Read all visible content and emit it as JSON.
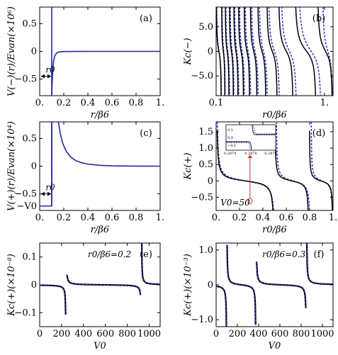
{
  "chart_data": [
    {
      "id": "a",
      "type": "line",
      "panel_label": "(a)",
      "xlabel": "r/β6",
      "ylabel": "V(−)(r)/Evan(×10⁶)",
      "xlim": [
        0,
        1
      ],
      "ylim": [
        -0.8,
        0.8
      ],
      "x_ticks": [
        0,
        0.2,
        0.4,
        0.6,
        0.8,
        1
      ],
      "x_tick_labels": [
        "0.",
        "0.2",
        "0.4",
        "0.6",
        "0.8",
        "1."
      ],
      "y_ticks": [
        -0.5,
        0,
        0.5
      ],
      "y_tick_labels": [
        "−0.5",
        "0",
        "0.5"
      ],
      "annotation": "r0",
      "r0": 0.1,
      "series": [
        {
          "color": "#1f2a9e",
          "style": "solid",
          "x": [
            0.1,
            0.103,
            0.108,
            0.115,
            0.125,
            0.14,
            0.16,
            0.2,
            0.3,
            0.5,
            0.8,
            1.0
          ],
          "y": [
            -0.8,
            -0.6,
            -0.35,
            -0.18,
            -0.08,
            -0.03,
            -0.012,
            -0.003,
            -0.0004,
            0,
            0,
            0
          ]
        }
      ]
    },
    {
      "id": "b",
      "type": "line",
      "panel_label": "(b)",
      "xlabel": "r0/β6",
      "ylabel": "Kc(−)",
      "xscale": "log",
      "xlim": [
        0.1,
        1.2
      ],
      "ylim": [
        -9,
        9
      ],
      "x_ticks": [
        0.1,
        1
      ],
      "x_tick_labels": [
        "0.1",
        "1."
      ],
      "y_ticks": [
        -5,
        0,
        5
      ],
      "y_tick_labels": [
        "−5.0",
        "0",
        "5.0"
      ],
      "solid_poles": [
        0.112,
        0.121,
        0.132,
        0.145,
        0.16,
        0.18,
        0.205,
        0.24,
        0.29,
        0.37,
        0.52,
        0.85
      ],
      "dashed_poles": [
        0.113,
        0.122,
        0.134,
        0.147,
        0.163,
        0.184,
        0.21,
        0.247,
        0.3,
        0.39,
        0.56,
        0.95
      ]
    },
    {
      "id": "c",
      "type": "line",
      "panel_label": "(c)",
      "xlabel": "r/β6",
      "ylabel": "V(+)(r)/Evan(×10⁴)",
      "xlim": [
        0,
        1
      ],
      "ylim": [
        -0.8,
        0.8
      ],
      "x_ticks": [
        0,
        0.2,
        0.4,
        0.6,
        0.8,
        1
      ],
      "x_tick_labels": [
        "0.",
        "0.2",
        "0.4",
        "0.6",
        "0.8",
        "1."
      ],
      "y_ticks": [
        -0.5,
        0,
        0.5
      ],
      "y_tick_labels": [
        "−0.5",
        "0",
        "0.5"
      ],
      "extra_y_label": "−V0",
      "V0_level": -0.72,
      "annotation": "r0",
      "r0": 0.1,
      "series": [
        {
          "color": "#1f2a9e",
          "style": "solid",
          "x": [
            0,
            0.1,
            0.1,
            0.155,
            0.17,
            0.19,
            0.22,
            0.26,
            0.3,
            0.35,
            0.4,
            0.5,
            0.6,
            0.8,
            1.0
          ],
          "y": [
            -0.72,
            -0.72,
            0.8,
            0.8,
            0.6,
            0.42,
            0.27,
            0.16,
            0.1,
            0.06,
            0.037,
            0.015,
            0.006,
            0.001,
            0
          ]
        }
      ]
    },
    {
      "id": "d",
      "type": "line",
      "panel_label": "(d)",
      "xlabel": "r0/β6",
      "ylabel": "Kc(+)",
      "xlim": [
        0,
        1
      ],
      "ylim": [
        -0.9,
        1.8
      ],
      "x_ticks": [
        0,
        0.2,
        0.4,
        0.6,
        0.8,
        1
      ],
      "x_tick_labels": [
        "0.",
        "0.2",
        "0.4",
        "0.6",
        "0.8",
        "1."
      ],
      "y_ticks": [
        -0.5,
        0,
        0.5,
        1,
        1.5
      ],
      "y_tick_labels": [
        "−0.5",
        "0",
        "0.5",
        "1.0",
        "1.5"
      ],
      "annotation": "V0=50",
      "inset": {
        "x_tick_labels": [
          "0.2874",
          "0.2876",
          "0.2878"
        ],
        "y_tick_labels": [
          "0.1",
          "0.0",
          "−0.1"
        ]
      },
      "solid_poles": [
        0.5,
        0.795
      ],
      "dashed_poles": [
        0.51,
        0.81
      ]
    },
    {
      "id": "e",
      "type": "line",
      "panel_label": "(e)",
      "xlabel": "V0",
      "ylabel": "Kc(+)(×10⁻⁸)",
      "annotation": "r0/β6=0.2",
      "xlim": [
        0,
        1100
      ],
      "ylim": [
        -0.15,
        0.15
      ],
      "x_ticks": [
        0,
        200,
        400,
        600,
        800,
        1000
      ],
      "x_tick_labels": [
        "0",
        "200",
        "400",
        "600",
        "800",
        "1000"
      ],
      "y_ticks": [
        -0.1,
        0,
        0.1
      ],
      "y_tick_labels": [
        "−0.1",
        "0",
        "0.1"
      ],
      "poles": [
        240,
        930
      ]
    },
    {
      "id": "f",
      "type": "line",
      "panel_label": "(f)",
      "xlabel": "V0",
      "ylabel": "Kc(+)(×10⁻³)",
      "annotation": "r0/β6=0.3",
      "xlim": [
        0,
        1100
      ],
      "ylim": [
        -1.2,
        1.2
      ],
      "x_ticks": [
        0,
        200,
        400,
        600,
        800,
        1000
      ],
      "x_tick_labels": [
        "0",
        "200",
        "400",
        "600",
        "800",
        "1000"
      ],
      "y_ticks": [
        -1,
        0,
        1
      ],
      "y_tick_labels": [
        "−1.0",
        "0",
        "1.0"
      ],
      "poles": [
        100,
        375,
        850
      ]
    }
  ]
}
